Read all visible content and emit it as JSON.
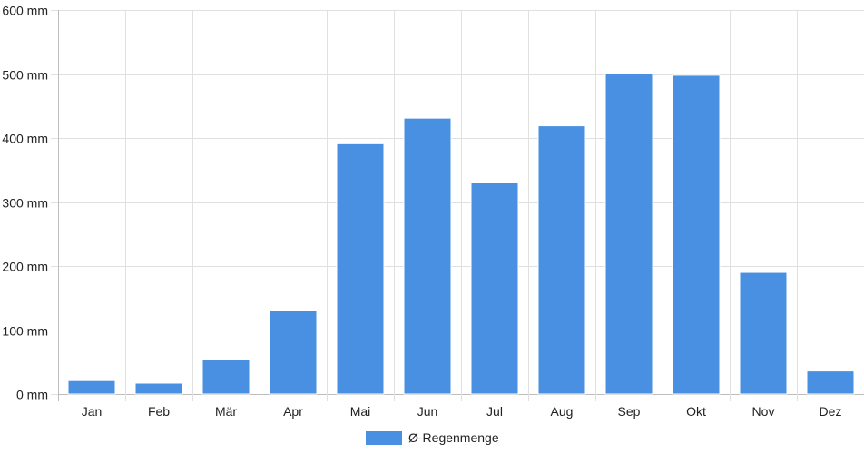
{
  "chart_data": {
    "type": "bar",
    "categories": [
      "Jan",
      "Feb",
      "Mär",
      "Apr",
      "Mai",
      "Jun",
      "Jul",
      "Aug",
      "Sep",
      "Okt",
      "Nov",
      "Dez"
    ],
    "series": [
      {
        "name": "Ø-Regenmenge",
        "values": [
          21,
          17,
          54,
          130,
          391,
          431,
          330,
          419,
          501,
          498,
          190,
          36
        ],
        "color": "#4a90e2"
      }
    ],
    "ylim": [
      0,
      600
    ],
    "yticks": [
      "0 mm",
      "100 mm",
      "200 mm",
      "300 mm",
      "400 mm",
      "500 mm",
      "600 mm"
    ],
    "ytick_values": [
      0,
      100,
      200,
      300,
      400,
      500,
      600
    ],
    "grid": true,
    "legend_position": "bottom-center"
  }
}
